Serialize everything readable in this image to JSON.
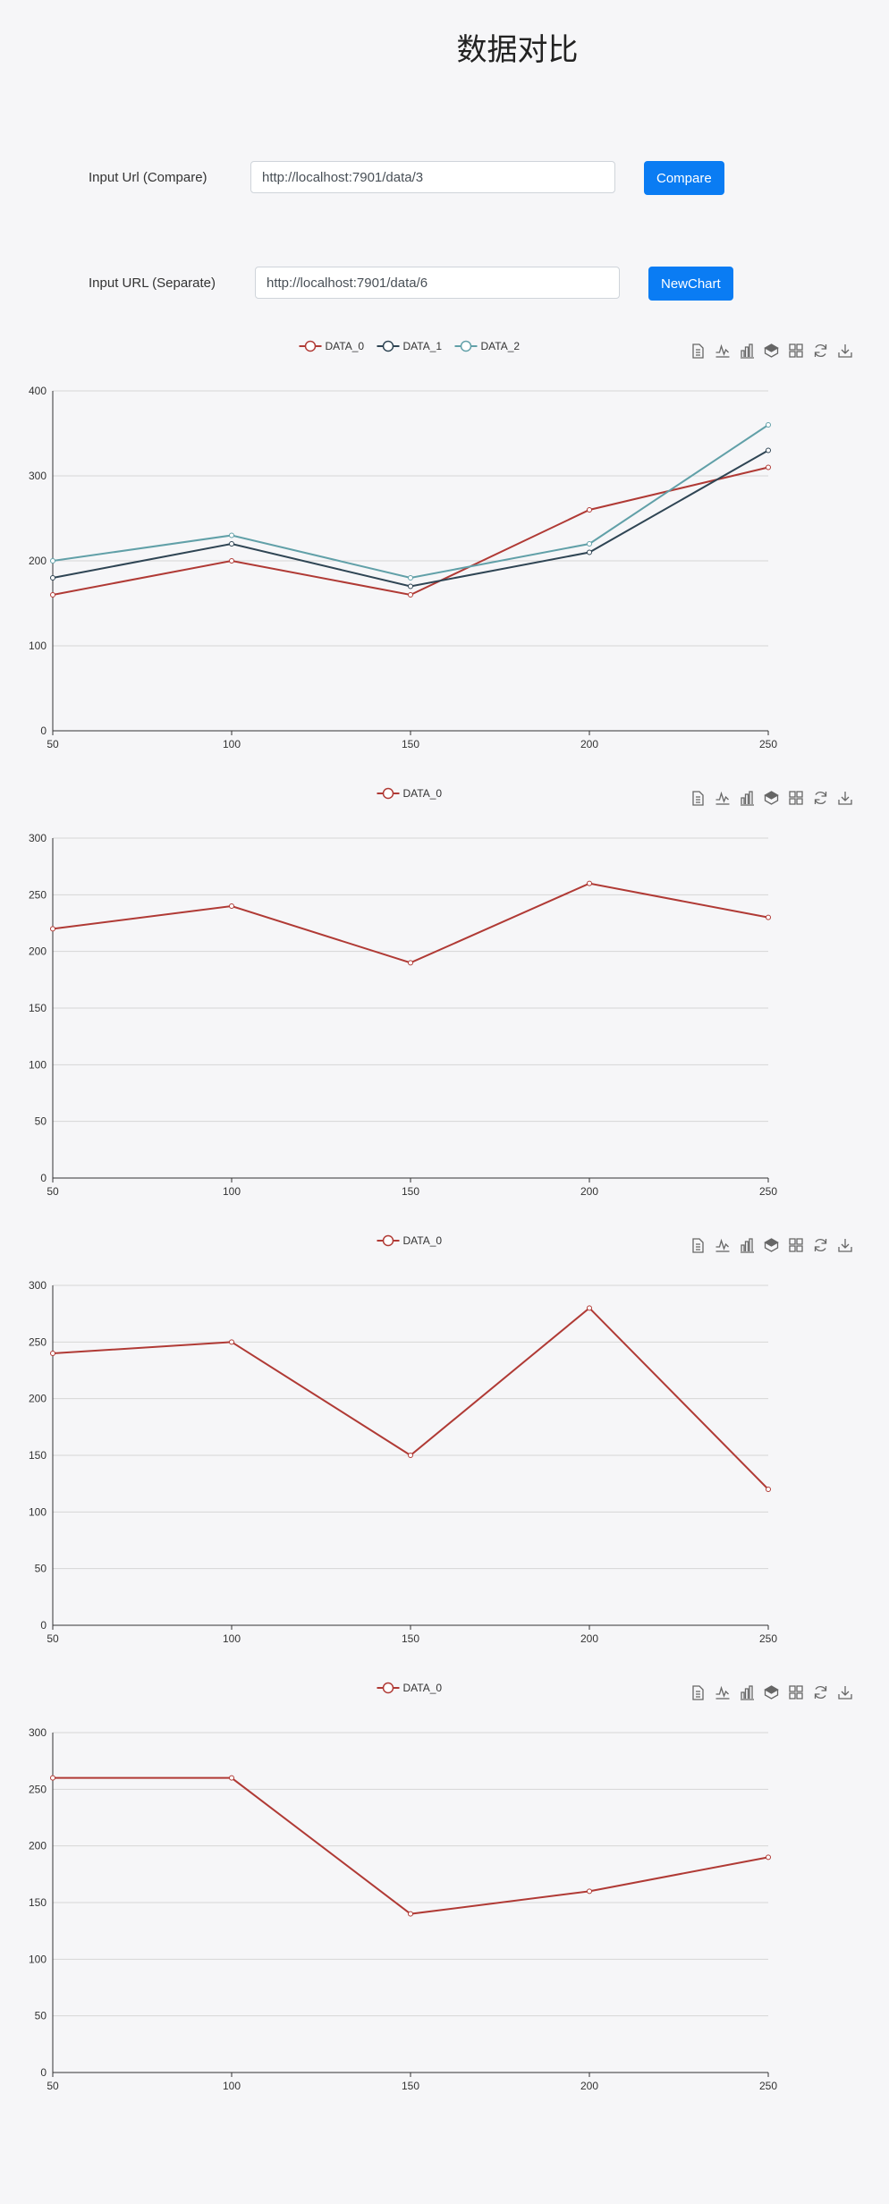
{
  "page_title": "数据对比",
  "compare": {
    "label": "Input Url (Compare)",
    "url": "http://localhost:7901/data/3",
    "button": "Compare"
  },
  "separate": {
    "label": "Input URL (Separate)",
    "url": "http://localhost:7901/data/6",
    "button": "NewChart"
  },
  "toolbox_icons": [
    "data-view-icon",
    "line-icon",
    "bar-icon",
    "stack-icon",
    "tiled-icon",
    "restore-icon",
    "save-image-icon"
  ],
  "chart_data": [
    {
      "type": "line",
      "x": [
        50,
        100,
        150,
        200,
        250
      ],
      "ylim": [
        0,
        400
      ],
      "yticks": [
        0,
        100,
        200,
        300,
        400
      ],
      "grid": true,
      "legend_position": "top-center",
      "series": [
        {
          "name": "DATA_0",
          "color": "#b03a35",
          "values": [
            160,
            200,
            160,
            260,
            310
          ]
        },
        {
          "name": "DATA_1",
          "color": "#2f4554",
          "values": [
            180,
            220,
            170,
            210,
            330
          ]
        },
        {
          "name": "DATA_2",
          "color": "#61a0a8",
          "values": [
            200,
            230,
            180,
            220,
            360
          ]
        }
      ]
    },
    {
      "type": "line",
      "x": [
        50,
        100,
        150,
        200,
        250
      ],
      "ylim": [
        0,
        300
      ],
      "yticks": [
        0,
        50,
        100,
        150,
        200,
        250,
        300
      ],
      "grid": true,
      "legend_position": "top-center",
      "series": [
        {
          "name": "DATA_0",
          "color": "#b03a35",
          "values": [
            220,
            240,
            190,
            260,
            230
          ]
        }
      ]
    },
    {
      "type": "line",
      "x": [
        50,
        100,
        150,
        200,
        250
      ],
      "ylim": [
        0,
        300
      ],
      "yticks": [
        0,
        50,
        100,
        150,
        200,
        250,
        300
      ],
      "grid": true,
      "legend_position": "top-center",
      "series": [
        {
          "name": "DATA_0",
          "color": "#b03a35",
          "values": [
            240,
            250,
            150,
            280,
            120
          ]
        }
      ]
    },
    {
      "type": "line",
      "x": [
        50,
        100,
        150,
        200,
        250
      ],
      "ylim": [
        0,
        300
      ],
      "yticks": [
        0,
        50,
        100,
        150,
        200,
        250,
        300
      ],
      "grid": true,
      "legend_position": "top-center",
      "series": [
        {
          "name": "DATA_0",
          "color": "#b03a35",
          "values": [
            260,
            260,
            140,
            160,
            190
          ]
        }
      ]
    }
  ]
}
